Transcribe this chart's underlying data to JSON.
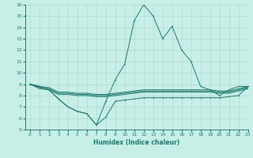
{
  "title": "",
  "xlabel": "Humidex (Indice chaleur)",
  "x": [
    0,
    1,
    2,
    3,
    4,
    5,
    6,
    7,
    8,
    9,
    10,
    11,
    12,
    13,
    14,
    15,
    16,
    17,
    18,
    19,
    20,
    21,
    22,
    23
  ],
  "series": {
    "max": [
      9,
      8.8,
      8.5,
      7.7,
      7.0,
      6.6,
      6.4,
      5.4,
      7.5,
      9.4,
      10.8,
      14.6,
      16.0,
      15.0,
      13.0,
      14.1,
      12.0,
      11.0,
      8.8,
      8.5,
      8.0,
      8.5,
      8.8,
      8.8
    ],
    "mean1": [
      9.0,
      8.8,
      8.7,
      8.3,
      8.3,
      8.2,
      8.2,
      8.1,
      8.1,
      8.2,
      8.3,
      8.4,
      8.5,
      8.5,
      8.5,
      8.5,
      8.5,
      8.5,
      8.5,
      8.5,
      8.4,
      8.4,
      8.6,
      8.8
    ],
    "mean2": [
      9.0,
      8.7,
      8.6,
      8.2,
      8.2,
      8.1,
      8.1,
      8.0,
      8.0,
      8.1,
      8.2,
      8.3,
      8.4,
      8.4,
      8.4,
      8.4,
      8.4,
      8.4,
      8.4,
      8.4,
      8.3,
      8.3,
      8.5,
      8.7
    ],
    "mean3": [
      9.0,
      8.6,
      8.5,
      8.1,
      8.1,
      8.0,
      8.0,
      7.9,
      7.9,
      8.0,
      8.1,
      8.2,
      8.3,
      8.3,
      8.3,
      8.3,
      8.3,
      8.3,
      8.3,
      8.3,
      8.2,
      8.2,
      8.4,
      8.6
    ],
    "min": [
      9,
      8.8,
      8.5,
      7.7,
      7.0,
      6.6,
      6.4,
      5.4,
      6.1,
      7.5,
      7.6,
      7.7,
      7.8,
      7.8,
      7.8,
      7.8,
      7.8,
      7.8,
      7.8,
      7.8,
      7.8,
      7.9,
      8.0,
      8.8
    ]
  },
  "line_color": "#1a7a6e",
  "bg_color": "#c8eee8",
  "grid_color": "#b0d8d0",
  "ylim": [
    5,
    16
  ],
  "xlim": [
    -0.5,
    23
  ],
  "yticks": [
    5,
    6,
    7,
    8,
    9,
    10,
    11,
    12,
    13,
    14,
    15,
    16
  ],
  "xticks": [
    0,
    1,
    2,
    3,
    4,
    5,
    6,
    7,
    8,
    9,
    10,
    11,
    12,
    13,
    14,
    15,
    16,
    17,
    18,
    19,
    20,
    21,
    22,
    23
  ]
}
